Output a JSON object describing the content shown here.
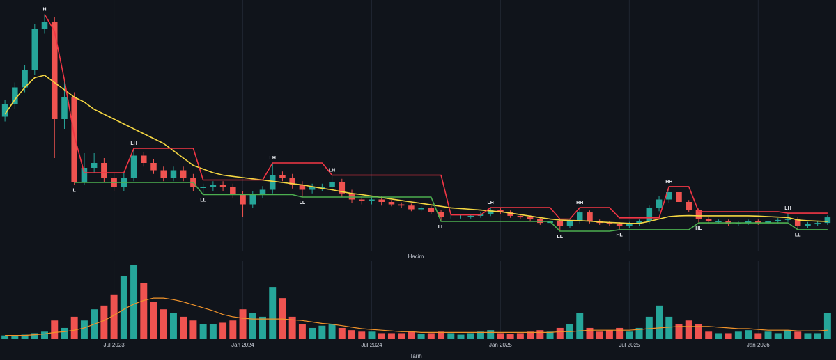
{
  "chart_data": [
    {
      "type": "candlestick",
      "ylim": [
        0,
        100
      ],
      "up_color": "#26a69a",
      "down_color": "#ef5350",
      "open": [
        55,
        60,
        67,
        74,
        91,
        94,
        54,
        63,
        28,
        34,
        36,
        30,
        26,
        30,
        39,
        36,
        33,
        30,
        33,
        30,
        26,
        26,
        27,
        26,
        23,
        19,
        23,
        25,
        31,
        30,
        27,
        25,
        26,
        26,
        28,
        23.5,
        21,
        20.5,
        21,
        20,
        19,
        18.5,
        17,
        17.6,
        16,
        14,
        14,
        14,
        14.3,
        15,
        16.6,
        15.7,
        14.3,
        13.7,
        12.9,
        11.4,
        12,
        10,
        12,
        15.7,
        12,
        11.4,
        10.9,
        10,
        11,
        12,
        17.7,
        21,
        24,
        20,
        16.6,
        12.9,
        12,
        12,
        11,
        11.4,
        12,
        11.4,
        12,
        12.6,
        13,
        10,
        11,
        11.4
      ],
      "high": [
        62,
        69,
        76,
        93,
        97,
        96,
        70,
        65,
        40,
        40,
        38,
        32,
        32,
        42,
        40.5,
        37.5,
        34.5,
        34.5,
        34.5,
        31.5,
        27.5,
        28.5,
        28.5,
        27.5,
        24.5,
        24.5,
        26.5,
        36,
        32.5,
        31.5,
        28.5,
        27.5,
        27.5,
        31,
        29.5,
        25,
        22.5,
        22.5,
        22.5,
        20.8,
        19.8,
        19.3,
        18.4,
        18.4,
        16.8,
        14.8,
        14.8,
        15.1,
        15.8,
        17.7,
        17.4,
        16.5,
        15.1,
        14.5,
        13.7,
        12.8,
        12.8,
        12.8,
        17.7,
        16.5,
        12.8,
        12.2,
        11.7,
        11.8,
        12.8,
        18.5,
        22.5,
        26.3,
        24.8,
        20.8,
        17.4,
        13.7,
        12.8,
        12.8,
        12.2,
        12.8,
        12.8,
        12.8,
        13.4,
        15.4,
        13.8,
        11.8,
        12.2,
        14.5
      ],
      "low": [
        53,
        58,
        65,
        72,
        89,
        38,
        50,
        27,
        27,
        32,
        28,
        24.5,
        24.5,
        28.5,
        34.5,
        31.5,
        28.5,
        28.5,
        28.5,
        24.5,
        23,
        24.5,
        24.5,
        21.5,
        14,
        17.5,
        21.5,
        23.5,
        28.5,
        25.5,
        22,
        23.5,
        24.5,
        24.5,
        22,
        19.5,
        19,
        19,
        18.5,
        18.2,
        17.7,
        16.2,
        16.2,
        15.2,
        12,
        13.2,
        13.2,
        13.2,
        13.5,
        14.2,
        14.9,
        13.5,
        12.9,
        12.1,
        10.6,
        10.6,
        8,
        9.2,
        11.2,
        11.2,
        10.6,
        10.1,
        8.6,
        9.2,
        10.2,
        11.2,
        16.2,
        19.5,
        18.5,
        15.8,
        11.4,
        11.2,
        11.2,
        10.2,
        10.2,
        10.6,
        10.6,
        10.6,
        11.2,
        11.8,
        8.6,
        9.2,
        10.2,
        10.6
      ],
      "close": [
        60,
        67,
        74,
        91,
        94,
        54,
        63,
        28,
        34,
        36,
        30,
        26,
        30,
        39,
        36,
        33,
        30,
        33,
        30,
        26,
        26,
        27,
        26,
        23,
        19,
        23,
        25,
        31,
        30,
        27,
        25,
        26,
        26,
        28,
        23.5,
        21,
        20.5,
        21,
        20,
        19,
        18.5,
        17,
        17.6,
        16,
        14,
        14,
        14,
        14.3,
        15,
        16.6,
        15.7,
        14.3,
        13.7,
        12.9,
        11.4,
        12,
        10,
        12,
        15.7,
        12,
        11.4,
        10.9,
        10,
        11,
        12,
        17.7,
        21,
        24,
        20,
        16.6,
        12.9,
        12,
        12,
        11,
        11.4,
        12,
        11.4,
        12,
        12.6,
        13,
        10,
        11,
        11.4,
        13.7
      ],
      "lines": [
        {
          "color": "#f5d742",
          "values": [
            56,
            62,
            67,
            71,
            72,
            69,
            66,
            63,
            61,
            58,
            56,
            54,
            52,
            50,
            48,
            46,
            44,
            41,
            38,
            35,
            33.5,
            32,
            31,
            30.5,
            30,
            29.5,
            29,
            28.5,
            28,
            27.5,
            27,
            26.3,
            25.6,
            25,
            24.2,
            23.5,
            23,
            22.4,
            21.8,
            21.2,
            20.6,
            20,
            19.4,
            18.8,
            18.2,
            17.6,
            17.3,
            17,
            16.7,
            16.3,
            16,
            15.4,
            14.8,
            14.2,
            13.6,
            13,
            12.6,
            12.4,
            12.3,
            12.1,
            11.8,
            11.6,
            11.4,
            11.2,
            11.2,
            12,
            13,
            14,
            14.3,
            14.4,
            14.3,
            14.3,
            14.3,
            14.3,
            14.3,
            14.3,
            14.2,
            14,
            13.8,
            13.6,
            12.6,
            12.3,
            12.1,
            12
          ]
        },
        {
          "color": "#f23645",
          "values": [
            null,
            null,
            null,
            null,
            97,
            90,
            70,
            47,
            32,
            32,
            32,
            32,
            32,
            42,
            42,
            42,
            42,
            42,
            42,
            42,
            29,
            29,
            29,
            29,
            29,
            29,
            29,
            36,
            36,
            36,
            36,
            36,
            36,
            31,
            31,
            31,
            31,
            31,
            31,
            31,
            31,
            31,
            31,
            31,
            31,
            14.7,
            14.7,
            14.7,
            14.7,
            17.7,
            17.7,
            17.7,
            17.7,
            17.7,
            17.7,
            17.7,
            13,
            13,
            17.7,
            17.7,
            17.7,
            17.7,
            13.5,
            13.5,
            13.5,
            13.5,
            13.5,
            26.3,
            26.3,
            26.3,
            16,
            16,
            16,
            16,
            16,
            16,
            16,
            16,
            16,
            15.4,
            15.4,
            15.4,
            15.4,
            15.4
          ]
        },
        {
          "color": "#4caf50",
          "values": [
            null,
            null,
            null,
            null,
            null,
            null,
            null,
            28,
            28,
            28,
            28,
            28,
            28,
            28,
            28,
            28,
            28,
            28,
            28,
            28,
            23,
            23,
            23,
            23,
            23,
            23,
            23,
            23,
            23,
            23,
            22,
            22,
            22,
            22,
            22,
            22,
            22,
            22,
            22,
            22,
            22,
            22,
            22,
            22,
            12,
            12,
            12,
            12,
            12,
            12,
            12,
            12,
            12,
            12,
            12,
            12,
            8,
            8,
            8,
            8,
            8,
            8,
            8.6,
            8.6,
            8.6,
            8.6,
            8.6,
            8.6,
            8.6,
            8.6,
            11.4,
            11.4,
            11.4,
            11.4,
            11.4,
            11.4,
            11.4,
            11.4,
            11.4,
            11.4,
            8.6,
            8.6,
            8.6,
            8.6
          ]
        }
      ],
      "swing_high_labels": [
        null,
        null,
        null,
        null,
        "H",
        null,
        null,
        null,
        null,
        null,
        null,
        null,
        null,
        "LH",
        null,
        null,
        null,
        null,
        null,
        null,
        null,
        null,
        null,
        null,
        null,
        null,
        null,
        "LH",
        null,
        null,
        null,
        null,
        null,
        "LH",
        null,
        null,
        null,
        null,
        null,
        null,
        null,
        null,
        null,
        null,
        null,
        null,
        null,
        null,
        null,
        "LH",
        null,
        null,
        null,
        null,
        null,
        null,
        null,
        null,
        "HH",
        null,
        null,
        null,
        null,
        null,
        null,
        null,
        null,
        "HH",
        null,
        null,
        null,
        null,
        null,
        null,
        null,
        null,
        null,
        null,
        null,
        "LH",
        null,
        null,
        null,
        null
      ],
      "swing_low_labels": [
        null,
        null,
        null,
        null,
        null,
        null,
        null,
        "L",
        null,
        null,
        null,
        null,
        null,
        null,
        null,
        null,
        null,
        null,
        null,
        null,
        "LL",
        null,
        null,
        null,
        null,
        null,
        null,
        null,
        null,
        null,
        "LL",
        null,
        null,
        null,
        null,
        null,
        null,
        null,
        null,
        null,
        null,
        null,
        null,
        null,
        "LL",
        null,
        null,
        null,
        null,
        null,
        null,
        null,
        null,
        null,
        null,
        null,
        "LL",
        null,
        null,
        null,
        null,
        null,
        "HL",
        null,
        null,
        null,
        null,
        null,
        null,
        null,
        "HL",
        null,
        null,
        null,
        null,
        null,
        null,
        null,
        null,
        null,
        "LL",
        null,
        null,
        null
      ]
    },
    {
      "type": "bar",
      "title": "Hacim",
      "xlabel": "Tarih",
      "ylim": [
        0,
        100
      ],
      "categories": [
        null,
        null,
        null,
        null,
        null,
        null,
        null,
        null,
        null,
        null,
        null,
        "Jul 2023",
        null,
        null,
        null,
        null,
        null,
        null,
        null,
        null,
        null,
        null,
        null,
        null,
        "Jan 2024",
        null,
        null,
        null,
        null,
        null,
        null,
        null,
        null,
        null,
        null,
        null,
        null,
        "Jul 2024",
        null,
        null,
        null,
        null,
        null,
        null,
        null,
        null,
        null,
        null,
        null,
        null,
        "Jan 2025",
        null,
        null,
        null,
        null,
        null,
        null,
        null,
        null,
        null,
        null,
        null,
        null,
        "Jul 2025",
        null,
        null,
        null,
        null,
        null,
        null,
        null,
        null,
        null,
        null,
        null,
        null,
        "Jan 2026",
        null,
        null,
        null,
        null,
        null,
        null,
        null
      ],
      "values": [
        5,
        5,
        6,
        8,
        10,
        25,
        15,
        30,
        25,
        40,
        45,
        60,
        85,
        100,
        75,
        50,
        40,
        35,
        30,
        25,
        20,
        20,
        22,
        25,
        40,
        35,
        30,
        70,
        55,
        30,
        20,
        15,
        18,
        20,
        15,
        12,
        10,
        10,
        8,
        8,
        8,
        10,
        7,
        8,
        10,
        8,
        6,
        8,
        10,
        12,
        8,
        7,
        8,
        10,
        12,
        10,
        15,
        20,
        35,
        15,
        10,
        12,
        15,
        10,
        15,
        30,
        45,
        30,
        20,
        25,
        20,
        10,
        8,
        8,
        10,
        12,
        8,
        10,
        8,
        12,
        10,
        8,
        8,
        35
      ],
      "ma": {
        "color": "#f0932b",
        "values": [
          5,
          5,
          5,
          6,
          7,
          9,
          10,
          12,
          15,
          20,
          25,
          32,
          40,
          47,
          52,
          55,
          55,
          53,
          50,
          46,
          42,
          38,
          33,
          30,
          28,
          27,
          27,
          27,
          27,
          26,
          25,
          23,
          21,
          20,
          18,
          16,
          14,
          13,
          12,
          11,
          10,
          10,
          9,
          9,
          9,
          9,
          9,
          9,
          9,
          9,
          9,
          9,
          9,
          9,
          9,
          9,
          10,
          10,
          11,
          12,
          12,
          12,
          12,
          12,
          13,
          14,
          15,
          16,
          17,
          17,
          17,
          17,
          16,
          15,
          14,
          14,
          13,
          12,
          12,
          12,
          11,
          11,
          11,
          12
        ]
      }
    }
  ]
}
